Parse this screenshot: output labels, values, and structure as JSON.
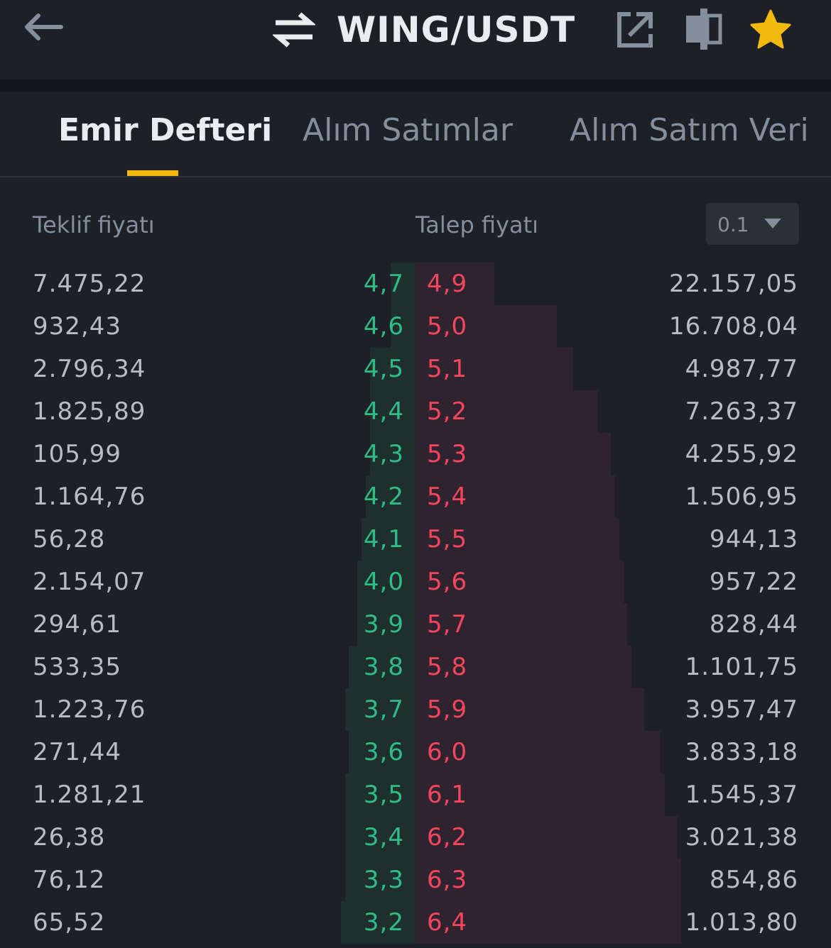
{
  "header": {
    "pair": "WING/USDT",
    "icons": [
      "back-arrow-icon",
      "swap-icon",
      "share-icon",
      "compare-icon",
      "star-icon"
    ],
    "star_color": "#f0b90b"
  },
  "tabs": [
    {
      "label": "Emir Defteri",
      "active": true
    },
    {
      "label": "Alım Satımlar",
      "active": false
    },
    {
      "label": "Alım Satım Veri",
      "active": false
    }
  ],
  "columns": {
    "bid_label": "Teklif fiyatı",
    "ask_label": "Talep fiyatı",
    "precision": "0.1"
  },
  "colors": {
    "bid": "#2ebd85",
    "ask": "#f6465d",
    "accent": "#f0b90b",
    "background": "#1e2027"
  },
  "orderbook": [
    {
      "bid_qty": "7.475,22",
      "bid_price": "4,7",
      "ask_price": "4,9",
      "ask_qty": "22.157,05",
      "bid_depth": 0.06,
      "ask_depth": 0.19
    },
    {
      "bid_qty": "932,43",
      "bid_price": "4,6",
      "ask_price": "5,0",
      "ask_qty": "16.708,04",
      "bid_depth": 0.06,
      "ask_depth": 0.34
    },
    {
      "bid_qty": "2.796,34",
      "bid_price": "4,5",
      "ask_price": "5,1",
      "ask_qty": "4.987,77",
      "bid_depth": 0.11,
      "ask_depth": 0.38
    },
    {
      "bid_qty": "1.825,89",
      "bid_price": "4,4",
      "ask_price": "5,2",
      "ask_qty": "7.263,37",
      "bid_depth": 0.11,
      "ask_depth": 0.44
    },
    {
      "bid_qty": "105,99",
      "bid_price": "4,3",
      "ask_price": "5,3",
      "ask_qty": "4.255,92",
      "bid_depth": 0.11,
      "ask_depth": 0.47
    },
    {
      "bid_qty": "1.164,76",
      "bid_price": "4,2",
      "ask_price": "5,4",
      "ask_qty": "1.506,95",
      "bid_depth": 0.12,
      "ask_depth": 0.48
    },
    {
      "bid_qty": "56,28",
      "bid_price": "4,1",
      "ask_price": "5,5",
      "ask_qty": "944,13",
      "bid_depth": 0.13,
      "ask_depth": 0.49
    },
    {
      "bid_qty": "2.154,07",
      "bid_price": "4,0",
      "ask_price": "5,6",
      "ask_qty": "957,22",
      "bid_depth": 0.14,
      "ask_depth": 0.5
    },
    {
      "bid_qty": "294,61",
      "bid_price": "3,9",
      "ask_price": "5,7",
      "ask_qty": "828,44",
      "bid_depth": 0.14,
      "ask_depth": 0.51
    },
    {
      "bid_qty": "533,35",
      "bid_price": "3,8",
      "ask_price": "5,8",
      "ask_qty": "1.101,75",
      "bid_depth": 0.16,
      "ask_depth": 0.52
    },
    {
      "bid_qty": "1.223,76",
      "bid_price": "3,7",
      "ask_price": "5,9",
      "ask_qty": "3.957,47",
      "bid_depth": 0.17,
      "ask_depth": 0.55
    },
    {
      "bid_qty": "271,44",
      "bid_price": "3,6",
      "ask_price": "6,0",
      "ask_qty": "3.833,18",
      "bid_depth": 0.16,
      "ask_depth": 0.59
    },
    {
      "bid_qty": "1.281,21",
      "bid_price": "3,5",
      "ask_price": "6,1",
      "ask_qty": "1.545,37",
      "bid_depth": 0.17,
      "ask_depth": 0.6
    },
    {
      "bid_qty": "26,38",
      "bid_price": "3,4",
      "ask_price": "6,2",
      "ask_qty": "3.021,38",
      "bid_depth": 0.17,
      "ask_depth": 0.63
    },
    {
      "bid_qty": "76,12",
      "bid_price": "3,3",
      "ask_price": "6,3",
      "ask_qty": "854,86",
      "bid_depth": 0.17,
      "ask_depth": 0.64
    },
    {
      "bid_qty": "65,52",
      "bid_price": "3,2",
      "ask_price": "6,4",
      "ask_qty": "1.013,80",
      "bid_depth": 0.18,
      "ask_depth": 0.64
    }
  ]
}
